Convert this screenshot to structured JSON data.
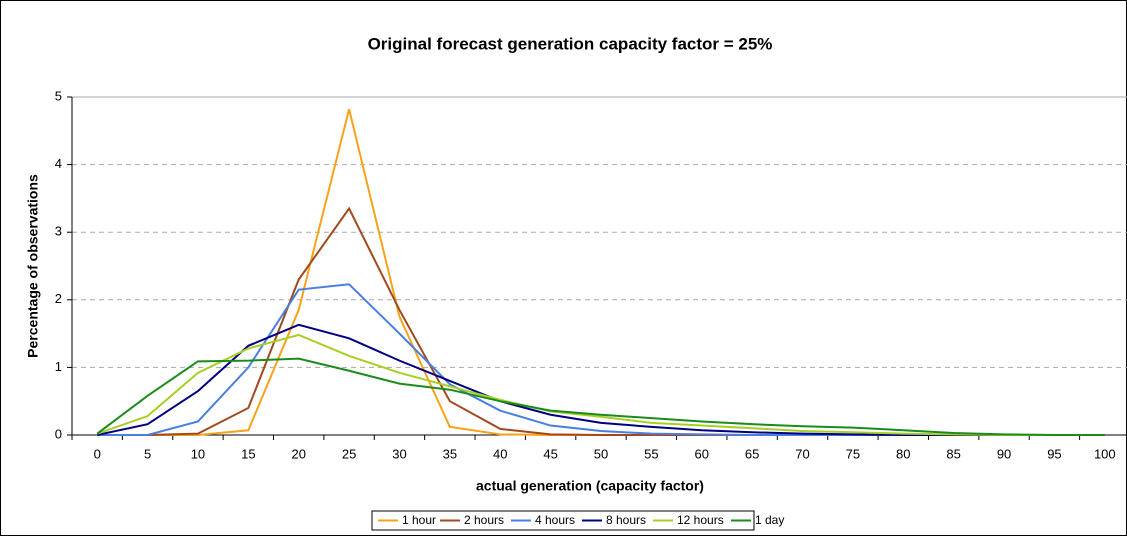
{
  "chart_data": {
    "type": "line",
    "title": "Original forecast generation capacity factor = 25%",
    "x_label": "actual generation (capacity factor)",
    "y_label": "Percentage of observations",
    "x": [
      0,
      5,
      10,
      15,
      20,
      25,
      30,
      35,
      40,
      45,
      50,
      55,
      60,
      65,
      70,
      75,
      80,
      85,
      90,
      95,
      100
    ],
    "xlim": [
      -2.5,
      102.5
    ],
    "xticks": [
      0,
      5,
      10,
      15,
      20,
      25,
      30,
      35,
      40,
      45,
      50,
      55,
      60,
      65,
      70,
      75,
      80,
      85,
      90,
      95,
      100
    ],
    "ylim": [
      0,
      5
    ],
    "yticks": [
      0,
      1,
      2,
      3,
      4,
      5
    ],
    "grid": true,
    "legend": "bottom",
    "series": [
      {
        "name": "1 hour",
        "color": "#f7a21b",
        "values": [
          0,
          0,
          0,
          0.07,
          1.85,
          4.82,
          1.75,
          0.12,
          0.01,
          0,
          0,
          0,
          0,
          0,
          0,
          0,
          0,
          0,
          0,
          0,
          0
        ]
      },
      {
        "name": "2 hours",
        "color": "#a3481d",
        "values": [
          0,
          0,
          0.02,
          0.4,
          2.3,
          3.35,
          1.85,
          0.5,
          0.09,
          0.01,
          0,
          0,
          0,
          0,
          0,
          0,
          0,
          0,
          0,
          0,
          0
        ]
      },
      {
        "name": "4 hours",
        "color": "#4a7fe0",
        "values": [
          0,
          0,
          0.2,
          1.0,
          2.15,
          2.23,
          1.5,
          0.75,
          0.36,
          0.14,
          0.06,
          0.02,
          0.01,
          0,
          0,
          0,
          0,
          0,
          0,
          0,
          0
        ]
      },
      {
        "name": "8 hours",
        "color": "#000080",
        "values": [
          0,
          0.16,
          0.65,
          1.32,
          1.63,
          1.43,
          1.1,
          0.8,
          0.5,
          0.3,
          0.18,
          0.12,
          0.07,
          0.04,
          0.02,
          0.01,
          0,
          0,
          0,
          0,
          0
        ]
      },
      {
        "name": "12 hours",
        "color": "#a8d024",
        "values": [
          0.02,
          0.28,
          0.92,
          1.28,
          1.48,
          1.17,
          0.92,
          0.72,
          0.52,
          0.35,
          0.27,
          0.18,
          0.14,
          0.1,
          0.06,
          0.04,
          0.02,
          0.01,
          0,
          0,
          0
        ]
      },
      {
        "name": "1 day",
        "color": "#1b8c1b",
        "values": [
          0.02,
          0.58,
          1.09,
          1.1,
          1.13,
          0.95,
          0.76,
          0.67,
          0.5,
          0.36,
          0.3,
          0.25,
          0.2,
          0.16,
          0.13,
          0.11,
          0.07,
          0.03,
          0.01,
          0,
          0
        ]
      }
    ]
  }
}
